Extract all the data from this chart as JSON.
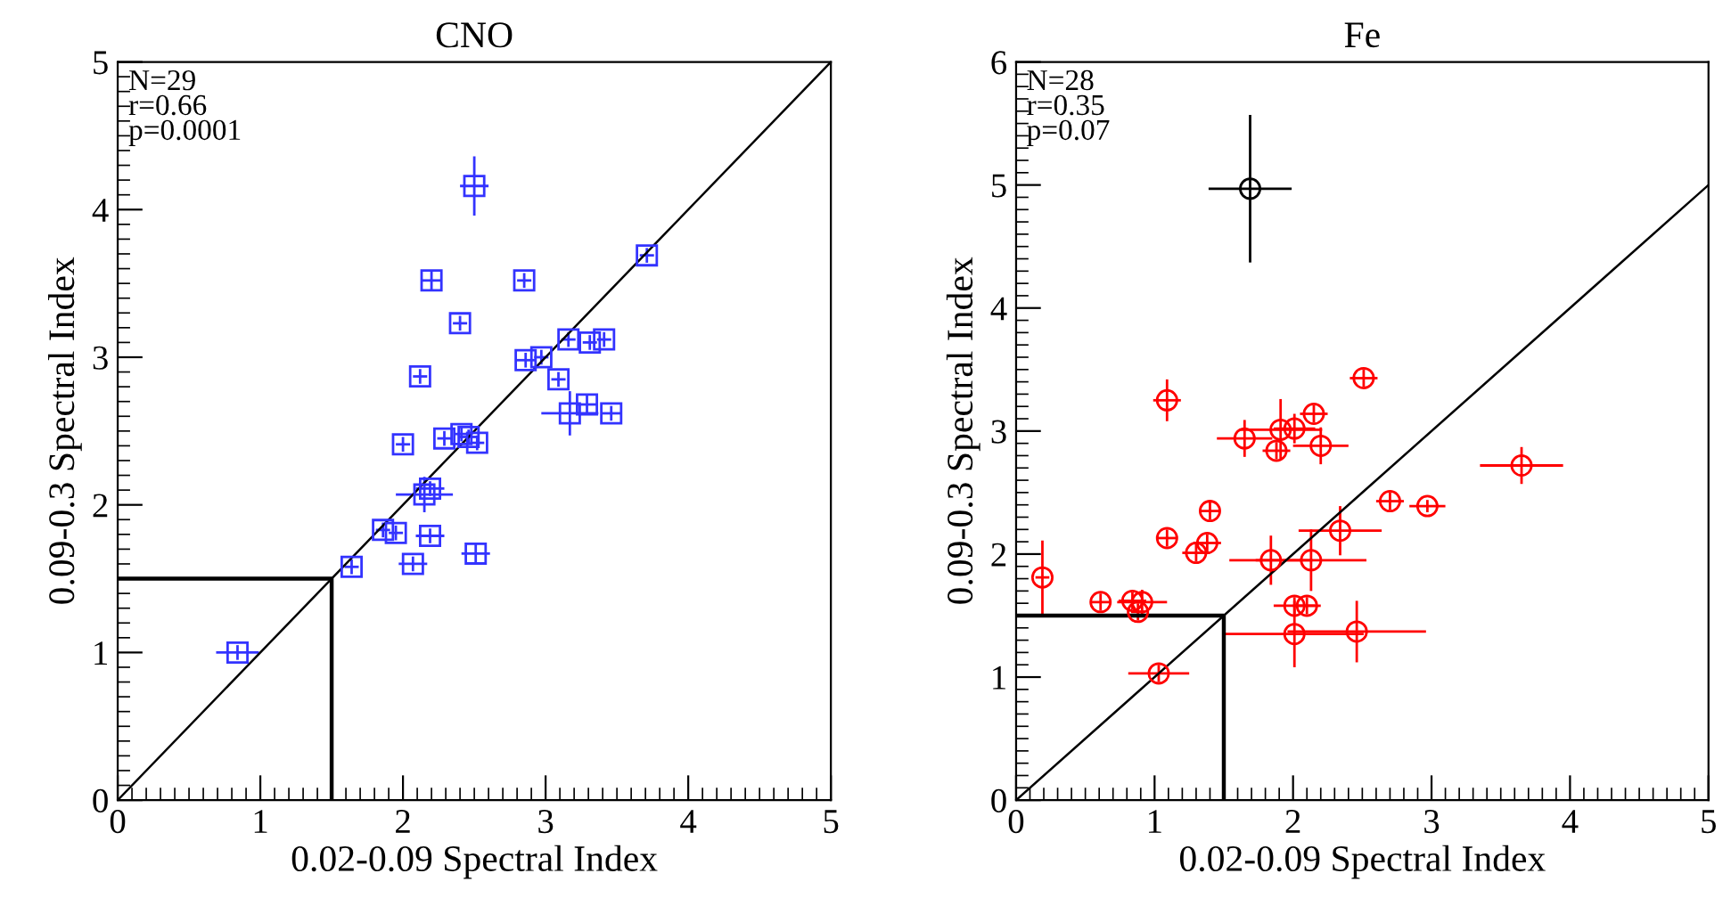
{
  "chart_data": [
    {
      "type": "scatter",
      "title": "CNO",
      "xlabel": "0.02-0.09 Spectral Index",
      "ylabel": "0.09-0.3 Spectral Index",
      "xlim": [
        0,
        5
      ],
      "ylim": [
        0,
        5
      ],
      "xticks": [
        0,
        1,
        2,
        3,
        4,
        5
      ],
      "yticks": [
        0,
        1,
        2,
        3,
        4,
        5
      ],
      "grid": false,
      "legend": false,
      "annotations": [
        "N=29",
        "r=0.66",
        "p=0.0001"
      ],
      "series": [
        {
          "color": "#3333ff",
          "marker": "square",
          "x": [
            0.84,
            1.64,
            2.07,
            2.51,
            1.86,
            1.95,
            2.19,
            2.15,
            2.19,
            2.0,
            2.29,
            2.41,
            2.46,
            2.52,
            2.5,
            2.2,
            2.85,
            3.71,
            2.4,
            2.12,
            3.16,
            3.31,
            3.41,
            2.86,
            2.97,
            3.09,
            3.17,
            3.29,
            3.46
          ],
          "values": [
            1.0,
            1.58,
            1.6,
            1.67,
            1.83,
            1.81,
            1.79,
            2.07,
            2.11,
            2.41,
            2.45,
            2.48,
            2.46,
            2.42,
            4.16,
            3.52,
            3.52,
            3.69,
            3.23,
            2.87,
            3.12,
            3.1,
            3.12,
            2.98,
            3.0,
            2.85,
            2.62,
            2.68,
            2.62
          ],
          "errors": [
            0.05,
            0.05,
            0.05,
            0.07,
            0.05,
            0.05,
            0.05,
            0.12,
            0.05,
            0.05,
            0.05,
            0.05,
            0.05,
            0.05,
            0.2,
            0.07,
            0.05,
            0.05,
            0.05,
            0.05,
            0.05,
            0.05,
            0.05,
            0.05,
            0.05,
            0.05,
            0.15,
            0.07,
            0.05
          ],
          "xerrors": [
            0.15,
            0.05,
            0.1,
            0.1,
            0.05,
            0.05,
            0.1,
            0.2,
            0.1,
            0.05,
            0.05,
            0.05,
            0.07,
            0.05,
            0.1,
            0.07,
            0.05,
            0.05,
            0.05,
            0.05,
            0.05,
            0.05,
            0.05,
            0.07,
            0.05,
            0.05,
            0.2,
            0.07,
            0.07
          ]
        },
        {
          "type": "line",
          "color": "#000000",
          "x": [
            0,
            5
          ],
          "values": [
            0,
            5
          ]
        },
        {
          "type": "line",
          "color": "#000000",
          "x": [
            0,
            1.5,
            1.5
          ],
          "values": [
            1.5,
            1.5,
            0
          ]
        }
      ]
    },
    {
      "type": "scatter",
      "title": "Fe",
      "xlabel": "0.02-0.09 Spectral Index",
      "ylabel": "0.09-0.3 Spectral Index",
      "xlim": [
        0,
        5
      ],
      "ylim": [
        0,
        6
      ],
      "xticks": [
        0,
        1,
        2,
        3,
        4,
        5
      ],
      "yticks": [
        0,
        1,
        2,
        3,
        4,
        5,
        6
      ],
      "grid": false,
      "legend": false,
      "annotations": [
        "N=28",
        "r=0.35",
        "p=0.07"
      ],
      "series": [
        {
          "color": "#ff0000",
          "marker": "circle",
          "x": [
            1.09,
            2.51,
            2.15,
            1.65,
            1.91,
            2.01,
            1.88,
            2.2,
            3.65,
            2.7,
            2.97,
            1.4,
            1.09,
            1.38,
            1.3,
            2.34,
            1.84,
            2.13,
            0.19,
            0.61,
            0.84,
            0.91,
            0.88,
            2.01,
            2.1,
            2.01,
            2.46,
            1.03
          ],
          "values": [
            3.25,
            3.43,
            3.14,
            2.94,
            3.01,
            3.02,
            2.84,
            2.88,
            2.72,
            2.43,
            2.39,
            2.35,
            2.13,
            2.09,
            2.01,
            2.19,
            1.95,
            1.95,
            1.81,
            1.61,
            1.62,
            1.61,
            1.53,
            1.58,
            1.58,
            1.35,
            1.37,
            1.03
          ],
          "errors": [
            0.17,
            0.07,
            0.07,
            0.15,
            0.25,
            0.12,
            0.07,
            0.15,
            0.15,
            0.07,
            0.05,
            0.07,
            0.07,
            0.07,
            0.07,
            0.2,
            0.2,
            0.25,
            0.3,
            0.07,
            0.07,
            0.1,
            0.07,
            0.07,
            0.07,
            0.27,
            0.25,
            0.07
          ],
          "xerrors": [
            0.1,
            0.1,
            0.1,
            0.2,
            0.3,
            0.15,
            0.1,
            0.2,
            0.3,
            0.1,
            0.13,
            0.07,
            0.07,
            0.1,
            0.1,
            0.3,
            0.3,
            0.4,
            0.05,
            0.07,
            0.1,
            0.18,
            0.05,
            0.15,
            0.1,
            0.5,
            0.5,
            0.22
          ]
        },
        {
          "color": "#000000",
          "marker": "circle",
          "x": [
            1.69
          ],
          "values": [
            4.97
          ],
          "errors": [
            0.6
          ],
          "xerrors": [
            0.3
          ]
        },
        {
          "type": "line",
          "color": "#000000",
          "x": [
            0,
            5
          ],
          "values": [
            0,
            5
          ]
        },
        {
          "type": "line",
          "color": "#000000",
          "x": [
            0,
            1.5,
            1.5
          ],
          "values": [
            1.5,
            1.5,
            0
          ]
        }
      ]
    }
  ]
}
